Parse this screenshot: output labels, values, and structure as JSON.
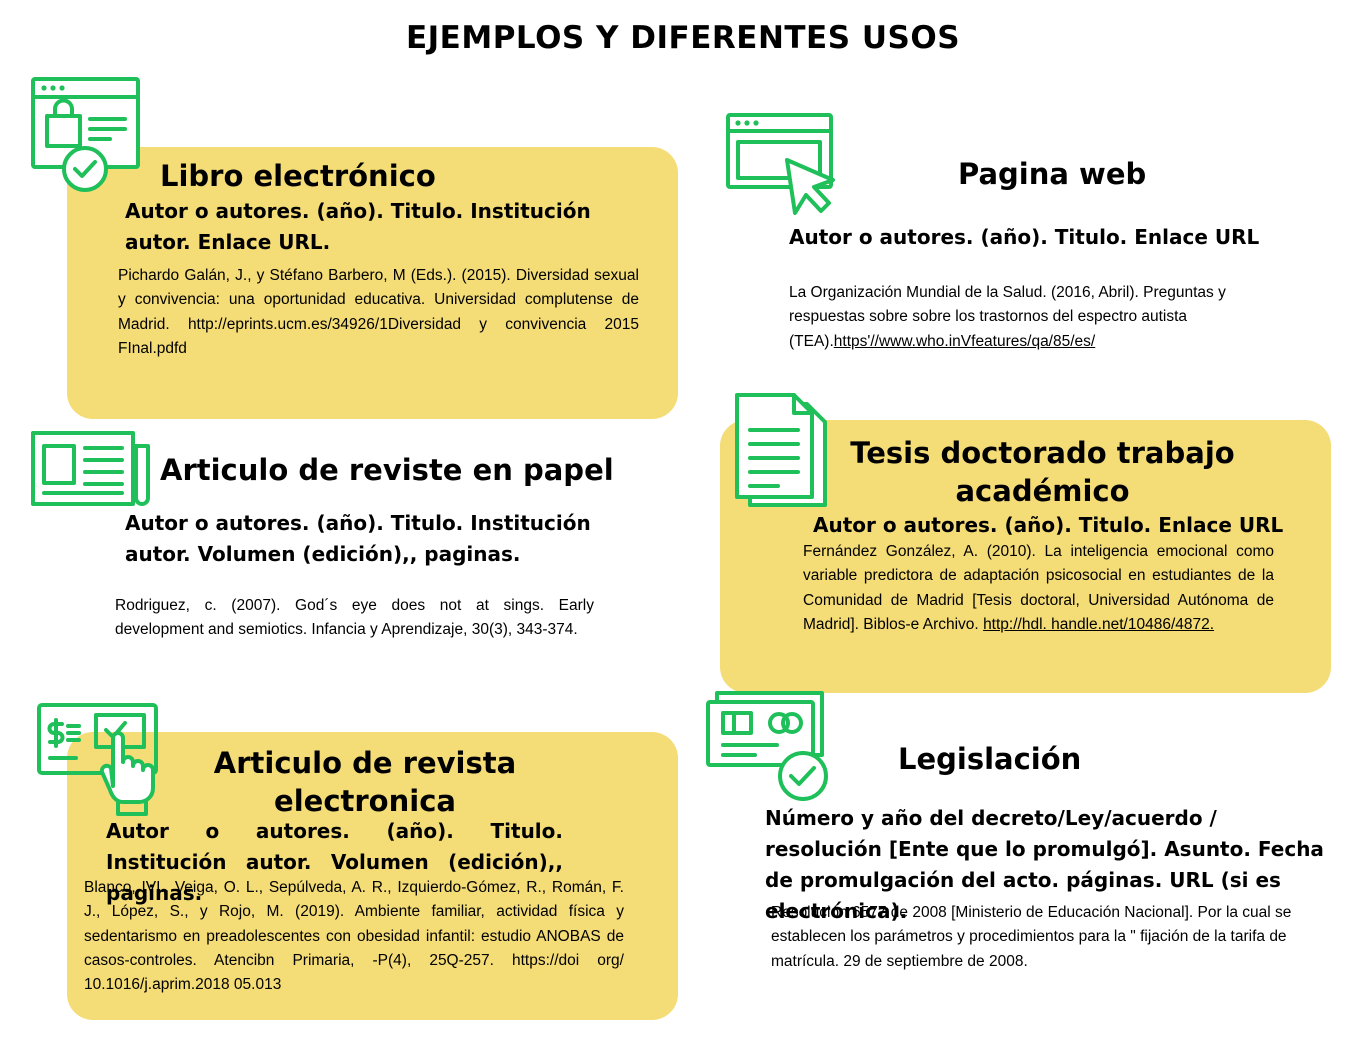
{
  "page_title": "EJEMPLOS Y DIFERENTES USOS",
  "colors": {
    "card": "#f4dc77",
    "icon": "#1fbf5a"
  },
  "sections": {
    "libro": {
      "icon": "shopping-window-icon",
      "heading": "Libro electrónico",
      "format": "Autor o autores. (año). Titulo. Institución autor. Enlace URL.",
      "example": "Pichardo Galán, J., y Stéfano Barbero, M (Eds.). (2015). Diversidad sexual y convivencia: una oportunidad educativa. Universidad complutense de Madrid.",
      "example_url": "http://eprints.ucm.es/34926/1Diversidad y convivencia 2015 FInal.pdfd"
    },
    "pagina": {
      "icon": "browser-cursor-icon",
      "heading": "Pagina web",
      "format": "Autor o autores. (año). Titulo. Enlace URL",
      "example": "La Organización Mundial de la Salud. (2016, Abril). Preguntas y respuestas sobre sobre los trastornos del espectro autista (TEA).",
      "example_url": "https'//www.who.inVfeatures/qa/85/es/"
    },
    "papel": {
      "icon": "newspaper-icon",
      "heading": "Articulo de reviste en papel",
      "format": "Autor o autores. (año). Titulo. Institución autor. Volumen (edición),, paginas.",
      "example": "Rodriguez, c. (2007). God´s eye does not at sings. Early development and semiotics. Infancia y Aprendizaje, 30(3), 343-374."
    },
    "tesis": {
      "icon": "document-icon",
      "heading": "Tesis doctorado trabajo académico",
      "format": "Autor o autores. (año). Titulo. Enlace URL",
      "example": "Fernández González, A. (2010). La inteligencia emocional como variable predictora de adaptación psicosocial en estudiantes de la Comunidad de Madrid [Tesis doctoral, Universidad Autónoma de Madrid]. Biblos-e Archivo.",
      "example_url": "http://hdl. handle.net/10486/4872."
    },
    "electronica": {
      "icon": "payment-screen-hand-icon",
      "heading": "Articulo de revista electronica",
      "format": "Autor o autores. (año). Titulo. Institución autor. Volumen (edición),, paginas.",
      "example": "Blanco, IVI., Veiga, O. L., Sepúlveda, A. R., Izquierdo-Gómez, R., Román, F. J., López, S., y Rojo, M. (2019). Ambiente familiar, actividad física y sedentarismo en preadolescentes con obesidad infantil: estudio ANOBAS de casos-controles. Atencibn Primaria, -P(4), 25Q-257. https://doi org/ 10.1016/j.aprim.2018 05.013"
    },
    "legislacion": {
      "icon": "card-check-icon",
      "heading": "Legislación",
      "format": "Número y año del decreto/Ley/acuerdo / resolución [Ente que lo promulgó]. Asunto. Fecha de promulgación del acto. páginas. URL (si es electrónica).",
      "example": "Resolución 6577 de 2008 [Ministerio de Educación Nacional]. Por la cual se establecen los parámetros y procedimientos para la \" fijación de la tarifa de matrícula. 29 de septiembre de 2008."
    }
  }
}
